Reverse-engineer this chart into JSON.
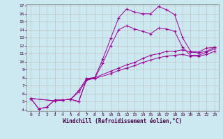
{
  "xlabel": "Windchill (Refroidissement éolien,°C)",
  "bg_color": "#cce8f0",
  "line_color": "#990099",
  "grid_color": "#bbbbbb",
  "xlim": [
    -0.5,
    23.5
  ],
  "ylim": [
    3.8,
    17.2
  ],
  "xticks": [
    0,
    1,
    2,
    3,
    4,
    5,
    6,
    7,
    8,
    9,
    10,
    11,
    12,
    13,
    14,
    15,
    16,
    17,
    18,
    19,
    20,
    21,
    22,
    23
  ],
  "yticks": [
    4,
    5,
    6,
    7,
    8,
    9,
    10,
    11,
    12,
    13,
    14,
    15,
    16,
    17
  ],
  "series": [
    {
      "x": [
        0,
        1,
        2,
        3,
        4,
        5,
        6,
        7,
        8,
        9,
        10,
        11,
        12,
        13,
        14,
        15,
        16,
        17,
        18,
        19,
        20,
        21,
        22,
        23
      ],
      "y": [
        5.4,
        4.1,
        4.3,
        5.2,
        5.2,
        5.3,
        5.0,
        7.9,
        8.0,
        10.3,
        12.9,
        15.5,
        16.6,
        16.2,
        16.0,
        16.0,
        16.9,
        16.5,
        15.9,
        13.0,
        11.3,
        11.2,
        11.7,
        11.8
      ]
    },
    {
      "x": [
        0,
        1,
        2,
        3,
        4,
        5,
        6,
        7,
        8,
        9,
        10,
        11,
        12,
        13,
        14,
        15,
        16,
        17,
        18,
        19,
        20,
        21,
        22,
        23
      ],
      "y": [
        5.4,
        4.1,
        4.3,
        5.2,
        5.2,
        5.3,
        5.0,
        7.8,
        7.9,
        9.8,
        12.0,
        14.0,
        14.5,
        14.1,
        13.8,
        13.5,
        14.2,
        14.1,
        13.8,
        11.8,
        10.8,
        10.8,
        11.2,
        11.6
      ]
    },
    {
      "x": [
        0,
        3,
        4,
        5,
        6,
        7,
        8,
        10,
        11,
        12,
        13,
        14,
        15,
        16,
        17,
        18,
        19,
        20,
        21,
        22,
        23
      ],
      "y": [
        5.4,
        5.1,
        5.2,
        5.3,
        6.4,
        7.9,
        8.0,
        8.8,
        9.2,
        9.6,
        9.9,
        10.4,
        10.8,
        11.0,
        11.3,
        11.3,
        11.5,
        11.2,
        11.1,
        11.3,
        11.8
      ]
    },
    {
      "x": [
        0,
        3,
        4,
        5,
        6,
        7,
        8,
        10,
        11,
        12,
        13,
        14,
        15,
        16,
        17,
        18,
        19,
        20,
        21,
        22,
        23
      ],
      "y": [
        5.4,
        5.1,
        5.2,
        5.3,
        6.2,
        7.7,
        7.9,
        8.5,
        8.9,
        9.2,
        9.5,
        9.9,
        10.2,
        10.5,
        10.7,
        10.8,
        10.9,
        10.7,
        10.7,
        10.9,
        11.3
      ]
    }
  ]
}
